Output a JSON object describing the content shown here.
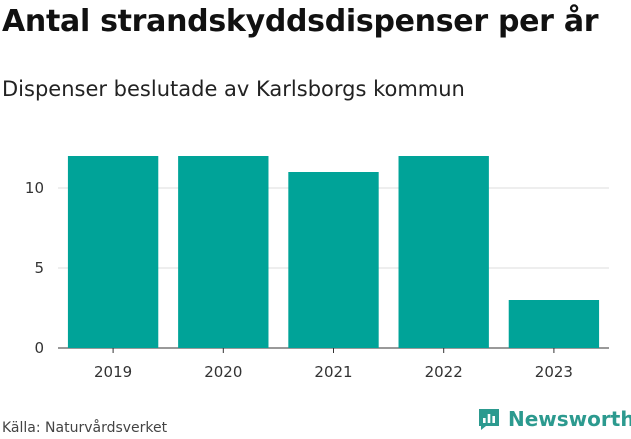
{
  "title": "Antal strandskyddsdispenser per år",
  "subtitle": "Dispenser beslutade av Karlsborgs kommun",
  "source": "Källa: Naturvårdsverket",
  "brand": {
    "name": "Newsworthy",
    "icon": "newsworthy-logo-icon"
  },
  "colors": {
    "bar": "#00a398",
    "grid": "#dddddd",
    "brand": "#2c9a8f"
  },
  "chart_data": {
    "type": "bar",
    "title": "Antal strandskyddsdispenser per år",
    "subtitle": "Dispenser beslutade av Karlsborgs kommun",
    "categories": [
      "2019",
      "2020",
      "2021",
      "2022",
      "2023"
    ],
    "values": [
      12,
      12,
      11,
      12,
      3
    ],
    "xlabel": "",
    "ylabel": "",
    "ylim": [
      0,
      13
    ],
    "yticks": [
      0,
      5,
      10
    ],
    "grid": true,
    "legend": "none"
  }
}
